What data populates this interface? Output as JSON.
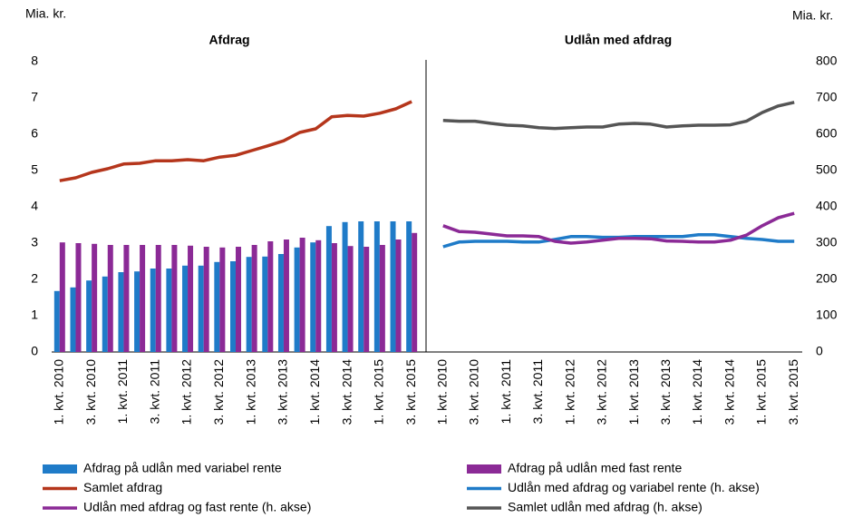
{
  "chart_data": [
    {
      "type": "bar",
      "title": "Afdrag",
      "ylabel": "Mia. kr.",
      "categories": [
        "1. kvt. 2010",
        null,
        "3. kvt. 2010",
        null,
        "1. kvt. 2011",
        null,
        "3. kvt. 2011",
        null,
        "1. kvt. 2012",
        null,
        "3. kvt. 2012",
        null,
        "1. kvt. 2013",
        null,
        "3. kvt. 2013",
        null,
        "1. kvt. 2014",
        null,
        "3. kvt. 2014",
        null,
        "1. kvt. 2015",
        null,
        "3. kvt. 2015"
      ],
      "ylim": [
        0,
        8
      ],
      "yticks": [
        0,
        1,
        2,
        3,
        4,
        5,
        6,
        7,
        8
      ],
      "series": [
        {
          "name": "Afdrag på udlån med variabel rente",
          "type": "bar",
          "color": "#1f7bc8",
          "values": [
            1.68,
            1.78,
            1.97,
            2.08,
            2.2,
            2.22,
            2.3,
            2.3,
            2.38,
            2.38,
            2.48,
            2.5,
            2.62,
            2.63,
            2.7,
            2.88,
            3.02,
            3.47,
            3.58,
            3.6,
            3.6,
            3.6,
            3.6
          ]
        },
        {
          "name": "Afdrag på udlån med fast rente",
          "type": "bar",
          "color": "#8b2a96",
          "values": [
            3.02,
            3.0,
            2.98,
            2.95,
            2.95,
            2.95,
            2.95,
            2.95,
            2.93,
            2.9,
            2.88,
            2.9,
            2.95,
            3.05,
            3.1,
            3.15,
            3.08,
            3.0,
            2.92,
            2.9,
            2.95,
            3.1,
            3.28
          ]
        },
        {
          "name": "Samlet afdrag",
          "type": "line",
          "color": "#b5361c",
          "values": [
            4.72,
            4.8,
            4.95,
            5.05,
            5.18,
            5.2,
            5.27,
            5.27,
            5.3,
            5.27,
            5.37,
            5.42,
            5.55,
            5.68,
            5.82,
            6.05,
            6.15,
            6.48,
            6.52,
            6.5,
            6.58,
            6.7,
            6.9
          ]
        }
      ]
    },
    {
      "type": "line",
      "title": "Udlån med afdrag",
      "y2label": "Mia. kr.",
      "categories": [
        "1. kvt. 2010",
        null,
        "3. kvt. 2010",
        null,
        "1. kvt. 2011",
        null,
        "3. kvt. 2011",
        null,
        "1. kvt. 2012",
        null,
        "3. kvt. 2012",
        null,
        "1. kvt. 2013",
        null,
        "3. kvt. 2013",
        null,
        "1. kvt. 2014",
        null,
        "3. kvt. 2014",
        null,
        "1. kvt. 2015",
        null,
        "3. kvt. 2015"
      ],
      "y2lim": [
        0,
        800
      ],
      "y2ticks": [
        0,
        100,
        200,
        300,
        400,
        500,
        600,
        700,
        800
      ],
      "series": [
        {
          "name": "Udlån med afdrag og variabel rente (h. akse)",
          "type": "line",
          "axis": "y2",
          "color": "#1f7bc8",
          "values": [
            290,
            303,
            305,
            305,
            305,
            303,
            303,
            310,
            318,
            318,
            316,
            316,
            318,
            318,
            318,
            318,
            323,
            323,
            318,
            313,
            310,
            305,
            305
          ]
        },
        {
          "name": "Udlån med afdrag og fast rente (h. akse)",
          "type": "line",
          "axis": "y2",
          "color": "#8b2a96",
          "values": [
            348,
            332,
            330,
            325,
            320,
            320,
            318,
            305,
            300,
            303,
            308,
            313,
            313,
            312,
            306,
            305,
            303,
            303,
            308,
            322,
            348,
            370,
            382
          ]
        },
        {
          "name": "Samlet udlån med afdrag (h. akse)",
          "type": "line",
          "axis": "y2",
          "color": "#555555",
          "values": [
            638,
            636,
            636,
            630,
            625,
            623,
            618,
            616,
            618,
            620,
            620,
            628,
            630,
            628,
            620,
            623,
            625,
            625,
            626,
            636,
            660,
            678,
            688
          ]
        }
      ]
    }
  ]
}
